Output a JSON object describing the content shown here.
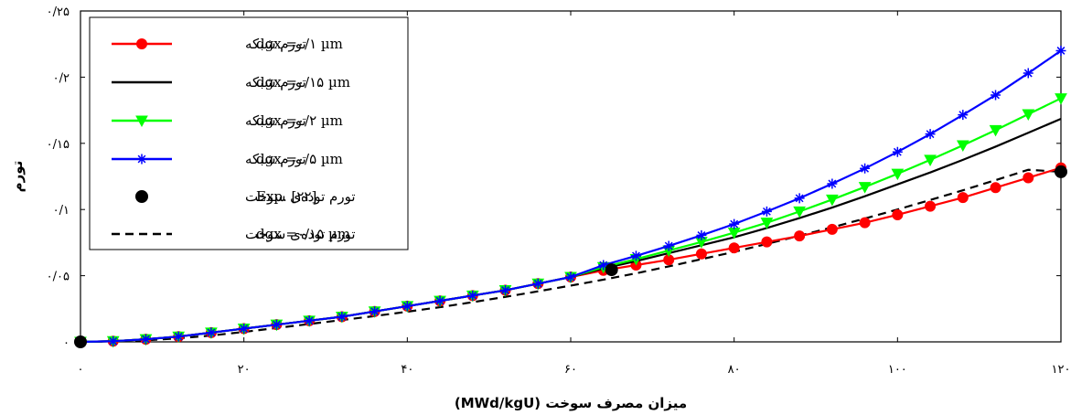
{
  "chart_data": {
    "type": "line",
    "xlabel": "میزان مصرف سوخت  (MWd/kgU)",
    "ylabel": "تورم",
    "xlim": [
      0,
      120
    ],
    "ylim": [
      0,
      0.25
    ],
    "x_ticks": [
      {
        "value": 0,
        "label": "۰"
      },
      {
        "value": 20,
        "label": "۲۰"
      },
      {
        "value": 40,
        "label": "۴۰"
      },
      {
        "value": 60,
        "label": "۶۰"
      },
      {
        "value": 80,
        "label": "۸۰"
      },
      {
        "value": 100,
        "label": "۱۰۰"
      },
      {
        "value": 120,
        "label": "۱۲۰"
      }
    ],
    "y_ticks": [
      {
        "value": 0,
        "label": "۰"
      },
      {
        "value": 0.05,
        "label": "۰/۰۵"
      },
      {
        "value": 0.1,
        "label": "۰/۱"
      },
      {
        "value": 0.15,
        "label": "۰/۱۵"
      },
      {
        "value": 0.2,
        "label": "۰/۲"
      },
      {
        "value": 0.25,
        "label": "۰/۲۵"
      }
    ],
    "grid": false,
    "legend_position": "top-left",
    "x": [
      0,
      4,
      8,
      12,
      16,
      20,
      24,
      28,
      32,
      36,
      40,
      44,
      48,
      52,
      56,
      60,
      64,
      68,
      72,
      76,
      80,
      84,
      88,
      92,
      96,
      100,
      104,
      108,
      112,
      116,
      120
    ],
    "series": [
      {
        "name": "تورم شبکه   dgx =۰/۱ µm",
        "legend_label": "تورم شبکه",
        "param": "dgx =۰/۱ µm",
        "color": "#ff0000",
        "marker": "circle",
        "line": "solid",
        "values": [
          0,
          0.0005,
          0.002,
          0.004,
          0.007,
          0.01,
          0.013,
          0.016,
          0.019,
          0.023,
          0.027,
          0.031,
          0.035,
          0.039,
          0.044,
          0.049,
          0.054,
          0.058,
          0.062,
          0.0665,
          0.071,
          0.0755,
          0.08,
          0.085,
          0.09,
          0.096,
          0.1025,
          0.109,
          0.1165,
          0.124,
          0.1315
        ]
      },
      {
        "name": "تورم شبکه   dgx =۰/۱۵ µm",
        "legend_label": "تورم شبکه",
        "param": "dgx =۰/۱۵ µm",
        "color": "#000000",
        "marker": "none",
        "line": "solid",
        "values": [
          0,
          0.0005,
          0.002,
          0.004,
          0.007,
          0.01,
          0.013,
          0.016,
          0.019,
          0.023,
          0.027,
          0.031,
          0.035,
          0.039,
          0.044,
          0.049,
          0.0555,
          0.061,
          0.067,
          0.073,
          0.079,
          0.086,
          0.0935,
          0.1015,
          0.11,
          0.119,
          0.128,
          0.1375,
          0.1475,
          0.158,
          0.1685
        ]
      },
      {
        "name": "تورم شبکه   dgx =۰/۲ µm",
        "legend_label": "تورم شبکه",
        "param": "dgx =۰/۲ µm",
        "color": "#00ff00",
        "marker": "triangle-down",
        "line": "solid",
        "values": [
          0,
          0.0005,
          0.002,
          0.004,
          0.007,
          0.01,
          0.013,
          0.016,
          0.019,
          0.023,
          0.027,
          0.031,
          0.035,
          0.039,
          0.044,
          0.049,
          0.0565,
          0.0625,
          0.069,
          0.0755,
          0.0825,
          0.09,
          0.0985,
          0.1075,
          0.117,
          0.127,
          0.1375,
          0.1485,
          0.16,
          0.172,
          0.184
        ]
      },
      {
        "name": "تورم شبکه   dgx =۰/۵ µm",
        "legend_label": "تورم شبکه",
        "param": "dgx =۰/۵ µm",
        "color": "#0000ff",
        "marker": "asterisk",
        "line": "solid",
        "values": [
          0,
          0.0005,
          0.002,
          0.004,
          0.007,
          0.01,
          0.013,
          0.016,
          0.019,
          0.023,
          0.027,
          0.031,
          0.035,
          0.039,
          0.044,
          0.049,
          0.058,
          0.065,
          0.0725,
          0.0805,
          0.089,
          0.0985,
          0.1085,
          0.1195,
          0.131,
          0.1435,
          0.157,
          0.1715,
          0.1865,
          0.203,
          0.22
        ]
      },
      {
        "name": "تورم توده‌ی سوخت   Exp. [۲۲]",
        "legend_label": "تورم توده‌ی سوخت",
        "param": "Exp. [۲۲]",
        "color": "#000000",
        "marker": "big-dot",
        "line": "none",
        "points": [
          {
            "x": 0,
            "y": 0
          },
          {
            "x": 65,
            "y": 0.0545
          },
          {
            "x": 120,
            "y": 0.1285
          }
        ]
      },
      {
        "name": "تورم توده‌ی سوخت   dgx =۰/۱۵ µm",
        "legend_label": "تورم توده‌ی سوخت",
        "param": "dgx =۰/۱۵ µm",
        "color": "#000000",
        "marker": "none",
        "line": "dashed",
        "values": [
          0,
          0.0003,
          0.0012,
          0.0027,
          0.0048,
          0.0075,
          0.0105,
          0.0135,
          0.0165,
          0.0195,
          0.0228,
          0.0262,
          0.03,
          0.034,
          0.0382,
          0.0425,
          0.047,
          0.0518,
          0.057,
          0.0625,
          0.068,
          0.074,
          0.0802,
          0.0865,
          0.0932,
          0.1,
          0.1072,
          0.1145,
          0.1222,
          0.13,
          0.1285
        ]
      }
    ]
  }
}
